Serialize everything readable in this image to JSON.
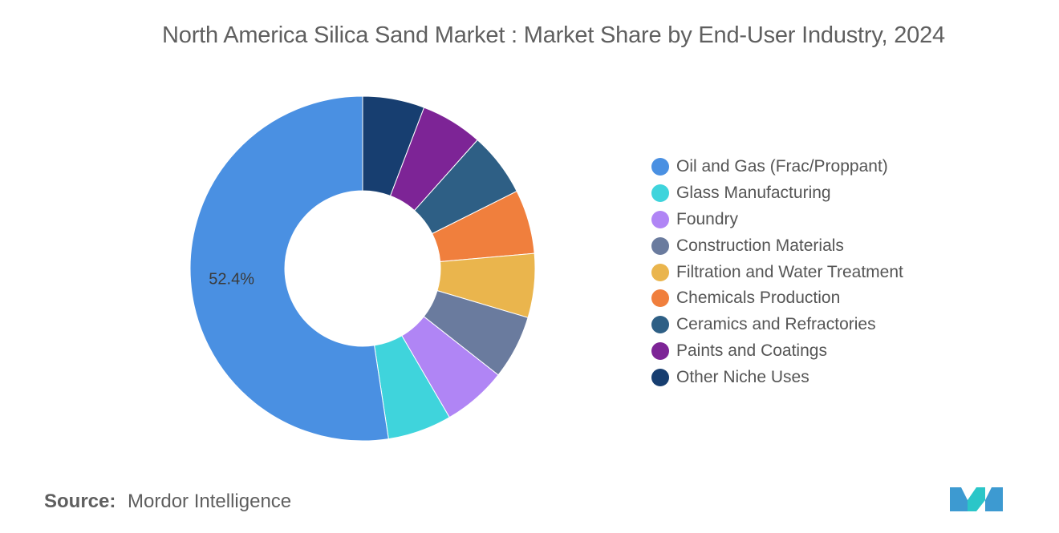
{
  "title": "North America Silica Sand Market : Market Share by End-User Industry, 2024",
  "chart_data": {
    "type": "pie",
    "donut": true,
    "legend_position": "right",
    "categories": [
      "Oil and Gas (Frac/Proppant)",
      "Glass Manufacturing",
      "Foundry",
      "Construction Materials",
      "Filtration and Water Treatment",
      "Chemicals Production",
      "Ceramics and Refractories",
      "Paints and Coatings",
      "Other Niche Uses"
    ],
    "values": [
      52.4,
      6.0,
      6.0,
      6.0,
      6.0,
      6.0,
      6.0,
      5.8,
      5.8
    ],
    "colors": [
      "#4a90e2",
      "#3fd4dc",
      "#b085f5",
      "#6a7b9e",
      "#eab54d",
      "#f07f3d",
      "#2e5f85",
      "#7d2496",
      "#173e70"
    ],
    "data_labels": [
      {
        "index": 0,
        "text": "52.4%"
      }
    ]
  },
  "source": {
    "label": "Source:",
    "value": "Mordor Intelligence"
  },
  "logo": {
    "icon": "mordor-intelligence-logo",
    "colors": [
      "#3d9ad1",
      "#2bc6c8"
    ]
  }
}
